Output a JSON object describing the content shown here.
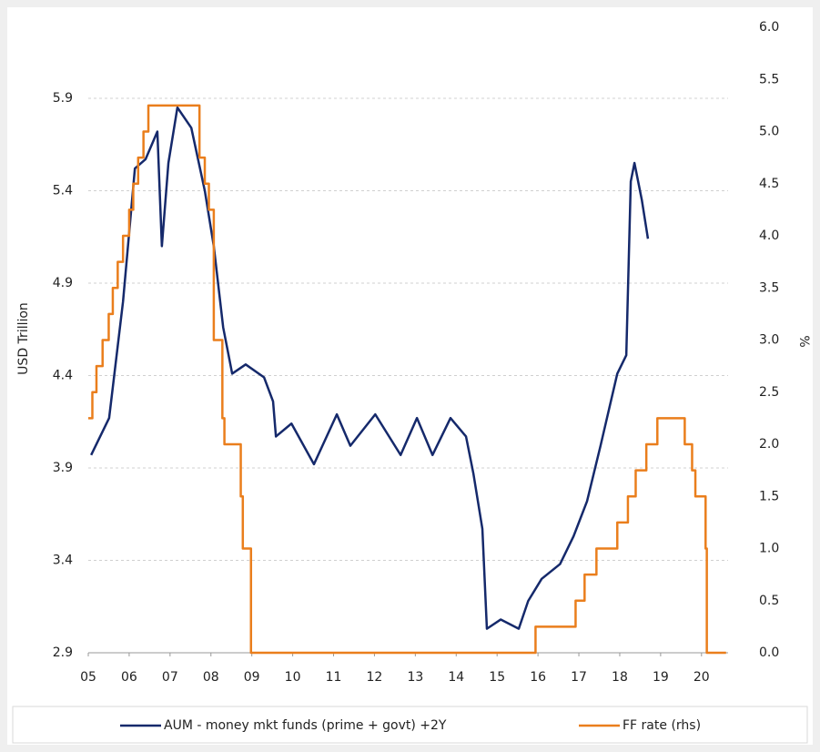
{
  "chart_data": {
    "type": "line",
    "ylabel": "USD Trillion",
    "y2label": "%",
    "xlim": [
      2005,
      2020.65
    ],
    "xticks": [
      {
        "value": 2005,
        "label": "05"
      },
      {
        "value": 2006,
        "label": "06"
      },
      {
        "value": 2007,
        "label": "07"
      },
      {
        "value": 2008,
        "label": "08"
      },
      {
        "value": 2009,
        "label": "09"
      },
      {
        "value": 2010,
        "label": "10"
      },
      {
        "value": 2011,
        "label": "11"
      },
      {
        "value": 2012,
        "label": "12"
      },
      {
        "value": 2013,
        "label": "13"
      },
      {
        "value": 2014,
        "label": "14"
      },
      {
        "value": 2015,
        "label": "15"
      },
      {
        "value": 2016,
        "label": "16"
      },
      {
        "value": 2017,
        "label": "17"
      },
      {
        "value": 2018,
        "label": "18"
      },
      {
        "value": 2019,
        "label": "19"
      },
      {
        "value": 2020,
        "label": "20"
      }
    ],
    "ylim": [
      2.9,
      6.284
    ],
    "yticks": [
      2.9,
      3.4,
      3.9,
      4.4,
      4.9,
      5.4,
      5.9
    ],
    "y2lim": [
      0,
      6
    ],
    "y2ticks": [
      {
        "value": 0,
        "label": "0.0"
      },
      {
        "value": 0.5,
        "label": "0.5"
      },
      {
        "value": 1,
        "label": "1.0"
      },
      {
        "value": 1.5,
        "label": "1.5"
      },
      {
        "value": 2,
        "label": "2.0"
      },
      {
        "value": 2.5,
        "label": "2.5"
      },
      {
        "value": 3,
        "label": "3.0"
      },
      {
        "value": 3.5,
        "label": "3.5"
      },
      {
        "value": 4,
        "label": "4.0"
      },
      {
        "value": 4.5,
        "label": "4.5"
      },
      {
        "value": 5,
        "label": "5.0"
      },
      {
        "value": 5.5,
        "label": "5.5"
      },
      {
        "value": 6,
        "label": "6.0"
      }
    ],
    "grid": true,
    "legend": "bottom",
    "series": [
      {
        "name": "AUM - money mkt funds (prime + govt) +2Y",
        "color": "#15296b",
        "x": [
          2005.07,
          2005.51,
          2005.85,
          2006.14,
          2006.4,
          2006.69,
          2006.8,
          2006.96,
          2007.18,
          2007.52,
          2007.85,
          2008.07,
          2008.3,
          2008.52,
          2008.85,
          2009.3,
          2009.52,
          2009.59,
          2009.97,
          2010.52,
          2011.08,
          2011.41,
          2012.02,
          2012.64,
          2013.04,
          2013.42,
          2013.86,
          2014.24,
          2014.42,
          2014.64,
          2014.75,
          2015.09,
          2015.53,
          2015.76,
          2016.09,
          2016.54,
          2016.87,
          2017.2,
          2017.53,
          2017.94,
          2018.16,
          2018.27,
          2018.36,
          2018.54,
          2018.69
        ],
        "values": [
          3.97,
          4.17,
          4.8,
          5.52,
          5.57,
          5.72,
          5.1,
          5.55,
          5.85,
          5.74,
          5.4,
          5.1,
          4.66,
          4.41,
          4.46,
          4.39,
          4.26,
          4.07,
          4.14,
          3.92,
          4.19,
          4.02,
          4.19,
          3.97,
          4.17,
          3.97,
          4.17,
          4.07,
          3.87,
          3.57,
          3.03,
          3.08,
          3.03,
          3.18,
          3.3,
          3.38,
          3.53,
          3.72,
          4.02,
          4.41,
          4.51,
          5.45,
          5.55,
          5.35,
          5.14
        ]
      },
      {
        "name": "FF rate (rhs)",
        "color": "#ea7e1c",
        "axis": "y2",
        "step": true,
        "x": [
          2005.0,
          2005.1,
          2005.2,
          2005.35,
          2005.5,
          2005.6,
          2005.72,
          2005.85,
          2006.0,
          2006.1,
          2006.22,
          2006.35,
          2006.47,
          2007.72,
          2007.85,
          2007.95,
          2008.07,
          2008.28,
          2008.33,
          2008.73,
          2008.78,
          2008.98,
          2015.94,
          2016.92,
          2017.14,
          2017.43,
          2017.94,
          2018.2,
          2018.39,
          2018.65,
          2018.92,
          2019.59,
          2019.77,
          2019.85,
          2020.1,
          2020.13,
          2020.6
        ],
        "values": [
          2.25,
          2.5,
          2.75,
          3.0,
          3.25,
          3.5,
          3.75,
          4.0,
          4.25,
          4.5,
          4.75,
          5.0,
          5.25,
          4.75,
          4.5,
          4.25,
          3.0,
          2.25,
          2.0,
          1.5,
          1.0,
          0.0,
          0.25,
          0.5,
          0.75,
          1.0,
          1.25,
          1.5,
          1.75,
          2.0,
          2.25,
          2.0,
          1.75,
          1.5,
          1.0,
          0.0,
          0.0
        ]
      }
    ]
  }
}
